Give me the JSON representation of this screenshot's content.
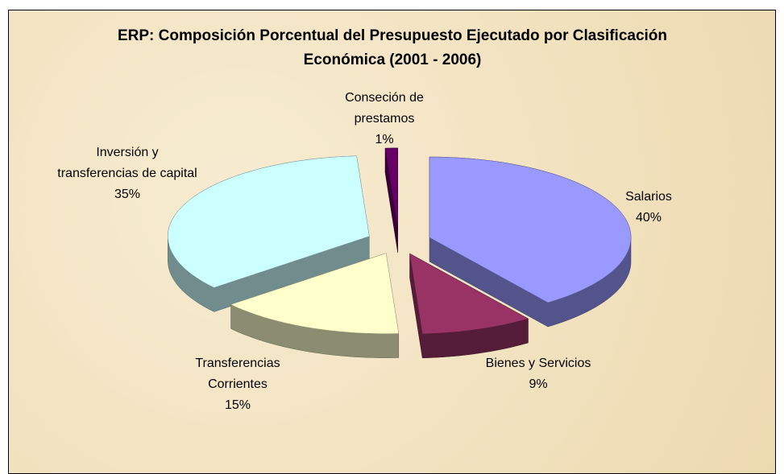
{
  "chart_data": {
    "type": "pie3d",
    "title": "ERP: Composición Porcentual del Presupuesto Ejecutado por Clasificación Económica (2001 - 2006)",
    "categories": [
      "Salarios",
      "Bienes y Servicios",
      "Transferencias Corrientes",
      "Inversión y transferencias de capital",
      "Conseción de prestamos"
    ],
    "values": [
      40,
      9,
      15,
      35,
      1
    ],
    "value_labels": [
      "40%",
      "9%",
      "15%",
      "35%",
      "1%"
    ],
    "colors": [
      "#9999ff",
      "#993366",
      "#ffffcc",
      "#ccffff",
      "#660066"
    ]
  }
}
